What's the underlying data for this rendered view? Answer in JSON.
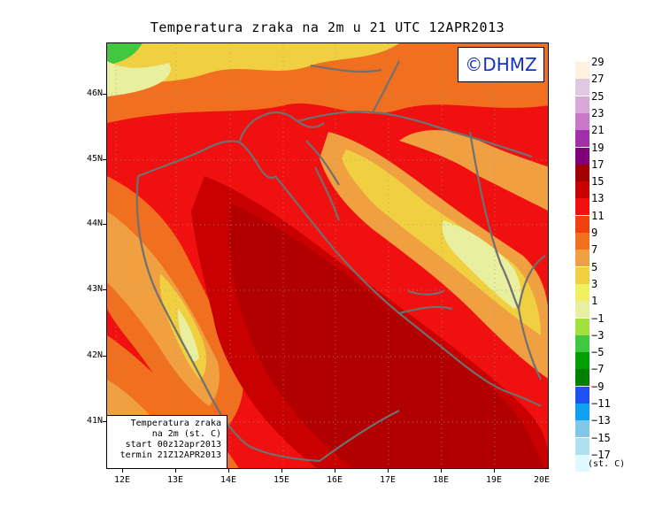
{
  "title": "Temperatura zraka na 2m u 21 UTC 12APR2013",
  "logo": "©DHMZ",
  "info_box": {
    "line1": "Temperatura zraka",
    "line2": "na 2m (st. C)",
    "line3": "start 00z12apr2013",
    "line4": "termin 21Z12APR2013"
  },
  "lat_labels": [
    "46N",
    "45N",
    "44N",
    "43N",
    "42N",
    "41N"
  ],
  "lon_labels": [
    "12E",
    "13E",
    "14E",
    "15E",
    "16E",
    "17E",
    "18E",
    "19E",
    "20E"
  ],
  "legend": {
    "unit": "(st. C)",
    "labels": [
      "29",
      "27",
      "25",
      "23",
      "21",
      "19",
      "17",
      "15",
      "13",
      "11",
      "9",
      "7",
      "5",
      "3",
      "1",
      "−1",
      "−3",
      "−5",
      "−7",
      "−9",
      "−11",
      "−13",
      "−15",
      "−17"
    ],
    "colors": [
      "#fff0e0",
      "#e0c8e0",
      "#d8a8d8",
      "#c878c8",
      "#a030a8",
      "#800078",
      "#a00000",
      "#c80000",
      "#f01010",
      "#f04010",
      "#f07020",
      "#f0a040",
      "#f0d040",
      "#f0f060",
      "#e8f0a0",
      "#a0e040",
      "#40c840",
      "#00a000",
      "#008000",
      "#2050f0",
      "#10a0f0",
      "#80c8e8",
      "#b0e0f0",
      "#e0f8ff"
    ]
  },
  "color_scale_note": "colors index 0 = warmest (top of legend)"
}
